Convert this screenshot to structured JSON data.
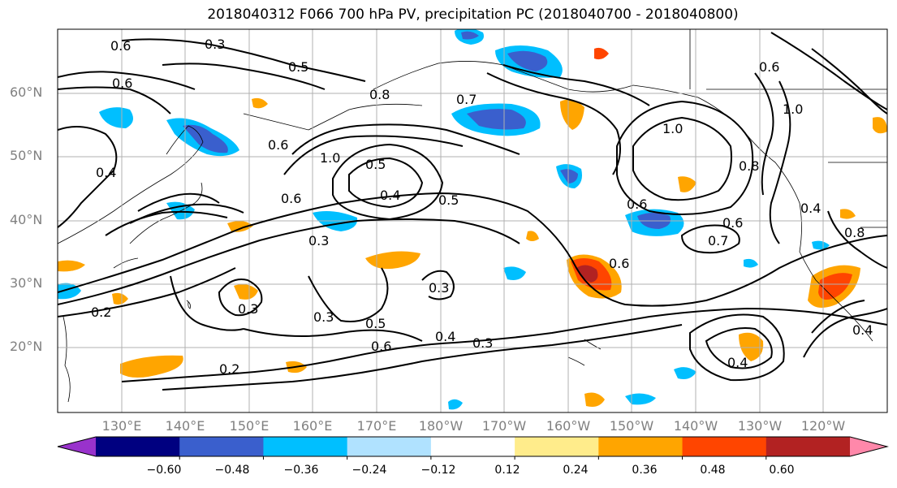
{
  "title": "2018040312 F066 700 hPa PV, precipitation PC (2018040700 - 2018040800)",
  "lat_labels": [
    "60°N",
    "50°N",
    "40°N",
    "30°N",
    "20°N"
  ],
  "lon_labels": [
    "130°E",
    "140°E",
    "150°E",
    "160°E",
    "170°E",
    "180°W",
    "170°W",
    "160°W",
    "150°W",
    "140°W",
    "130°W",
    "120°W"
  ],
  "colorbar": {
    "tick_labels": [
      "−0.60",
      "−0.48",
      "−0.36",
      "−0.24",
      "−0.12",
      "0.12",
      "0.24",
      "0.36",
      "0.48",
      "0.60"
    ],
    "colors": [
      "#9932CC",
      "#000080",
      "#3A5FCD",
      "#00BFFF",
      "#B0E2FF",
      "#FFFFFF",
      "#FFEC8B",
      "#FFA500",
      "#FF4500",
      "#B22222",
      "#FF88AA"
    ]
  },
  "contour_labels": [
    "0.3",
    "0.5",
    "0.6",
    "0.6",
    "0.6",
    "1.0",
    "0.5",
    "0.4",
    "0.5",
    "0.6",
    "0.3",
    "0.3",
    "0.3",
    "0.3",
    "0.5",
    "0.6",
    "0.4",
    "0.3",
    "0.2",
    "0.2",
    "0.4",
    "0.8",
    "0.7",
    "1.0",
    "0.6",
    "0.6",
    "0.6",
    "0.7",
    "0.4",
    "0.4",
    "1.0",
    "0.8",
    "0.6",
    "0.8",
    "0.4"
  ],
  "feature_colors": {
    "contour": "#000000",
    "grid": "#b0b0b0",
    "coast": "#000000"
  }
}
